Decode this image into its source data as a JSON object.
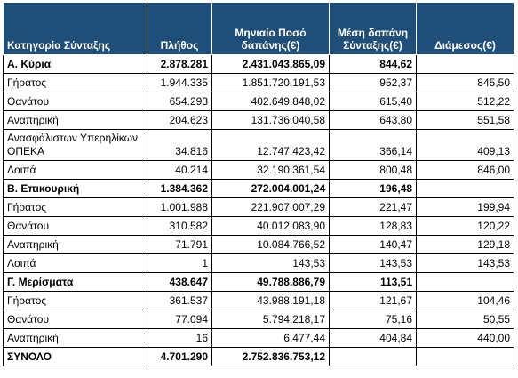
{
  "table": {
    "header": [
      "Κατηγορία Σύνταξης",
      "Πλήθος",
      "Μηνιαίο Ποσό δαπάνης(€)",
      "Μέση δαπάνη Σύνταξης(€)",
      "Διάμεσος(€)"
    ],
    "rows": [
      {
        "bold": true,
        "cells": [
          "Α. Κύρια",
          "2.878.281",
          "2.431.043.865,09",
          "844,62",
          null
        ]
      },
      {
        "bold": false,
        "cells": [
          "Γήρατος",
          "1.944.335",
          "1.851.720.191,53",
          "952,37",
          "845,50"
        ]
      },
      {
        "bold": false,
        "cells": [
          "Θανάτου",
          "654.293",
          "402.649.848,02",
          "615,40",
          "512,22"
        ]
      },
      {
        "bold": false,
        "cells": [
          "Αναπηρική",
          "204.623",
          "131.736.040,58",
          "643,80",
          "551,58"
        ]
      },
      {
        "bold": false,
        "cells": [
          "Ανασφάλιστων Υπερηλίκων ΟΠΕΚΑ",
          "34.816",
          "12.747.423,42",
          "366,14",
          "409,13"
        ]
      },
      {
        "bold": false,
        "cells": [
          "Λοιπά",
          "40.214",
          "32.190.361,54",
          "800,48",
          "846,00"
        ]
      },
      {
        "bold": true,
        "cells": [
          "Β. Επικουρική",
          "1.384.362",
          "272.004.001,24",
          "196,48",
          null
        ]
      },
      {
        "bold": false,
        "cells": [
          "Γήρατος",
          "1.001.988",
          "221.907.007,29",
          "221,47",
          "199,94"
        ]
      },
      {
        "bold": false,
        "cells": [
          "Θανάτου",
          "310.582",
          "40.012.083,90",
          "128,83",
          "120,22"
        ]
      },
      {
        "bold": false,
        "cells": [
          "Αναπηρική",
          "71.791",
          "10.084.766,52",
          "140,47",
          "129,18"
        ]
      },
      {
        "bold": false,
        "cells": [
          "Λοιπά",
          "1",
          "143,53",
          "143,53",
          "143,53"
        ]
      },
      {
        "bold": true,
        "cells": [
          "Γ. Μερίσματα",
          "438.647",
          "49.788.886,79",
          "113,51",
          null
        ]
      },
      {
        "bold": false,
        "cells": [
          "Γήρατος",
          "361.537",
          "43.988.191,18",
          "121,67",
          "104,46"
        ]
      },
      {
        "bold": false,
        "cells": [
          "Θανάτου",
          "77.094",
          "5.794.218,17",
          "75,16",
          "50,55"
        ]
      },
      {
        "bold": false,
        "cells": [
          "Αναπηρική",
          "16",
          "6.477,44",
          "404,84",
          "440,00"
        ]
      },
      {
        "bold": true,
        "cells": [
          "ΣΥΝΟΛΟ",
          "4.701.290",
          "2.752.836.753,12",
          null,
          null
        ]
      }
    ]
  }
}
